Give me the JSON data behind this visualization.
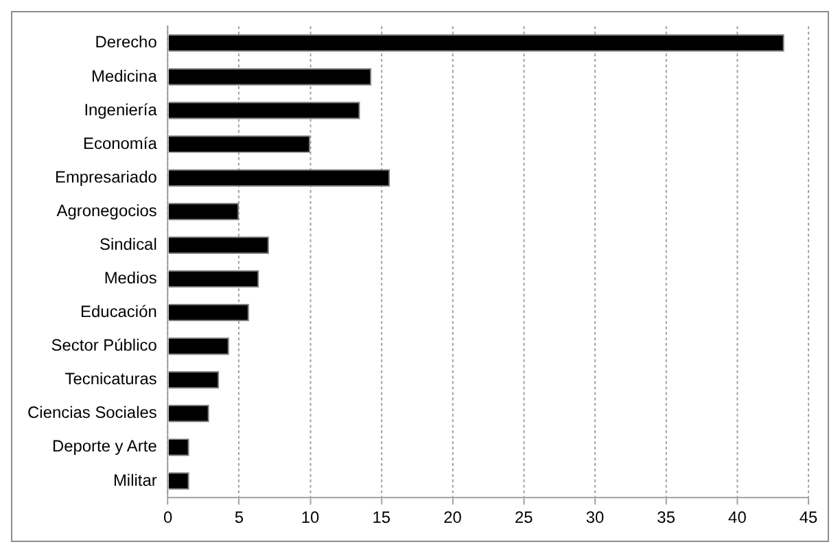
{
  "chart_data": {
    "type": "bar",
    "orientation": "horizontal",
    "categories": [
      "Derecho",
      "Medicina",
      "Ingeniería",
      "Economía",
      "Empresariado",
      "Agronegocios",
      "Sindical",
      "Medios",
      "Educación",
      "Sector Público",
      "Tecnicaturas",
      "Ciencias Sociales",
      "Deporte y Arte",
      "Militar"
    ],
    "values": [
      43.3,
      14.3,
      13.5,
      10.0,
      15.6,
      5.0,
      7.1,
      6.4,
      5.7,
      4.3,
      3.6,
      2.9,
      1.5,
      1.5
    ],
    "color": "#000000",
    "xlim": [
      0,
      45
    ],
    "xticks": [
      0,
      5,
      10,
      15,
      20,
      25,
      30,
      35,
      40,
      45
    ],
    "grid": "x",
    "legend": false
  }
}
